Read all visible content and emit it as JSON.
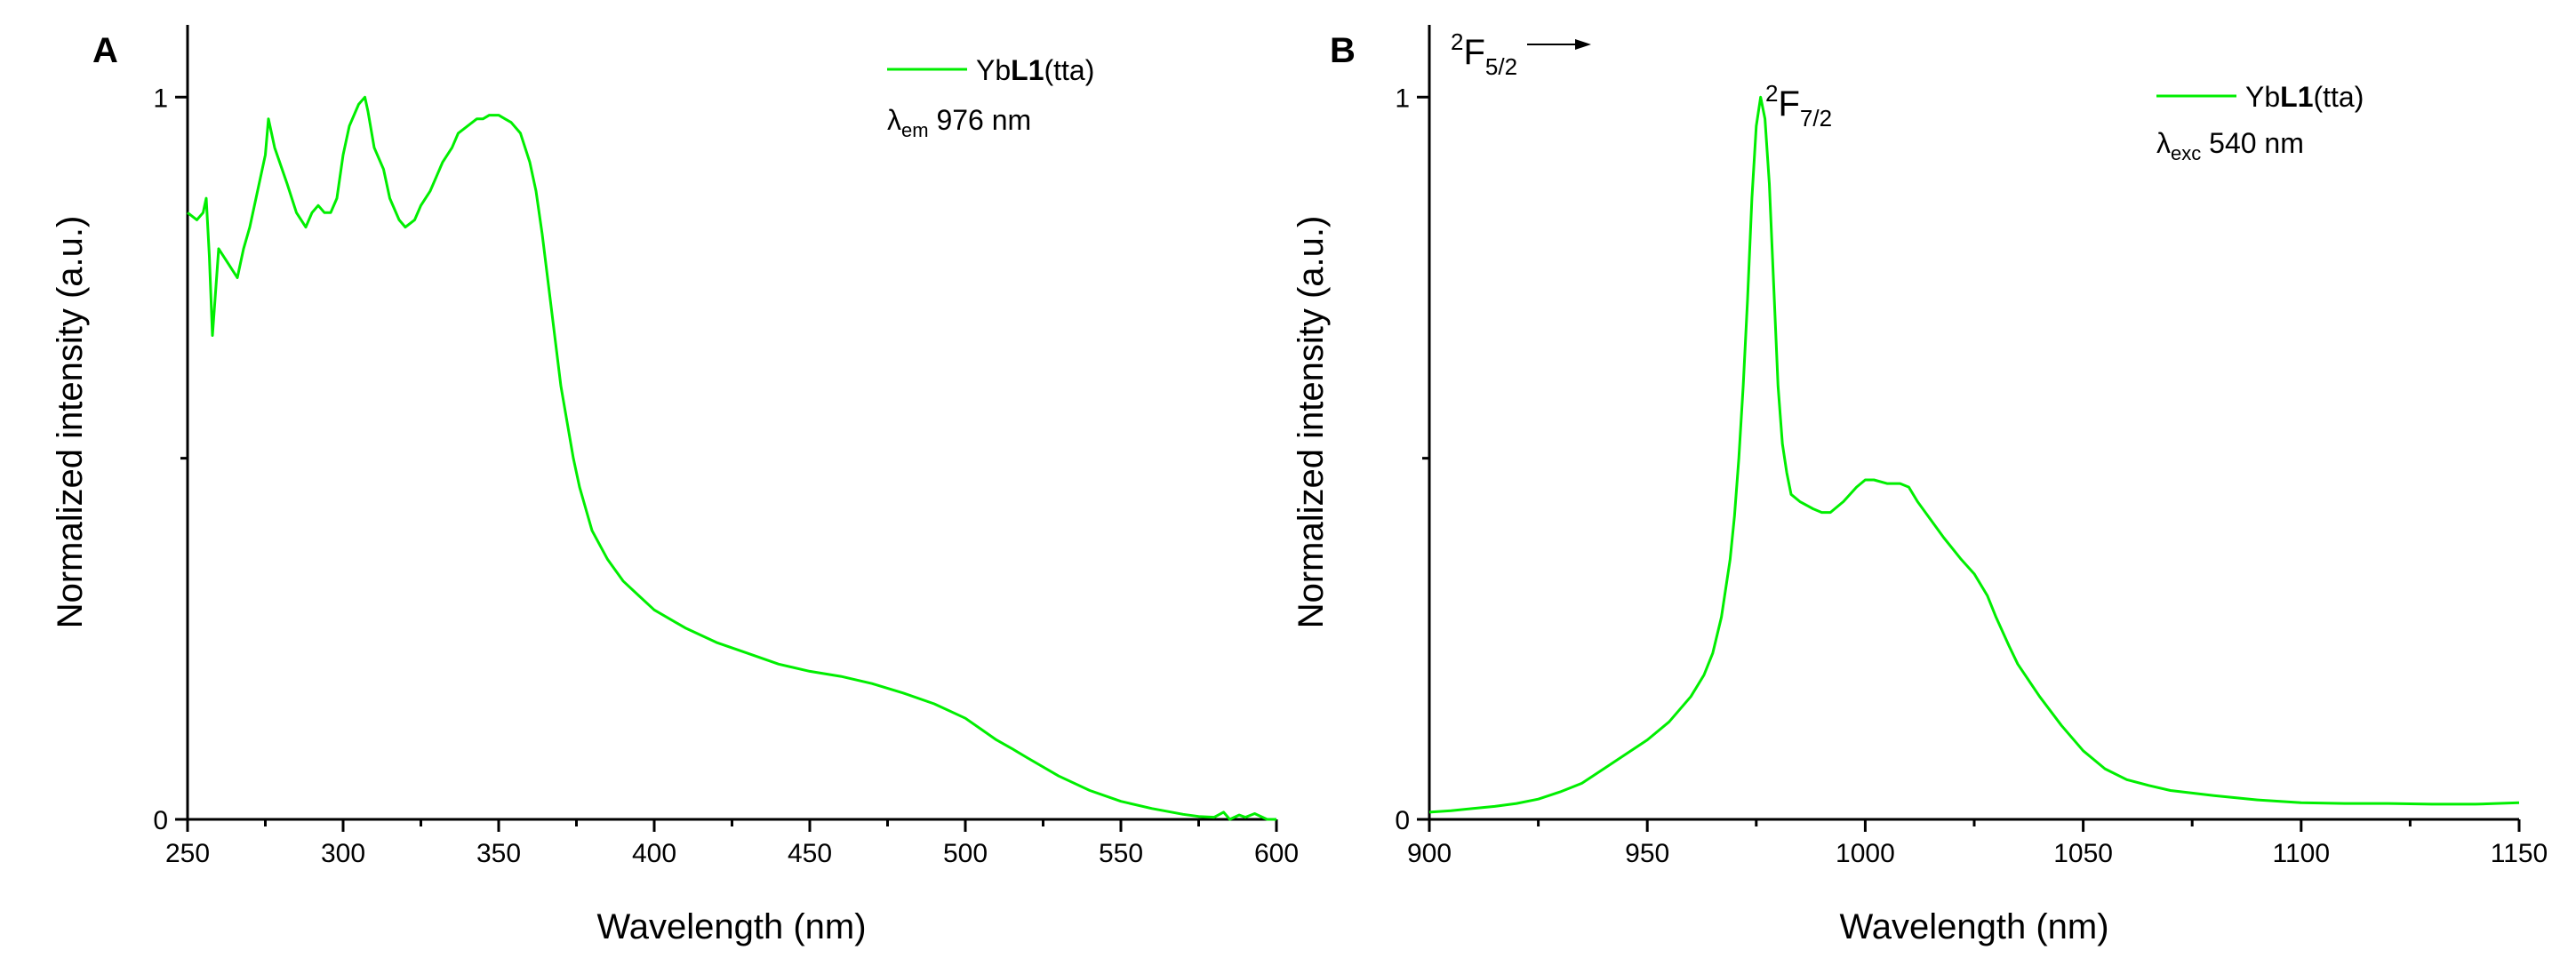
{
  "colors": {
    "series": "#00ee00",
    "axis": "#000000"
  },
  "chart_data": [
    {
      "type": "line",
      "panel_label": "A",
      "xlabel": "Wavelength (nm)",
      "ylabel": "Normalized intensity (a.u.)",
      "xlim": [
        250,
        600
      ],
      "ylim": [
        0,
        1.1
      ],
      "x_major_ticks": [
        250,
        300,
        350,
        400,
        450,
        500,
        550,
        600
      ],
      "x_tick_labels": [
        "250",
        "300",
        "350",
        "400",
        "450",
        "500",
        "550",
        "600"
      ],
      "y_major_ticks": [
        0,
        1
      ],
      "y_tick_labels": [
        "0",
        "1"
      ],
      "y_minor_ticks": [
        0.5
      ],
      "legend": {
        "placement": "top-right",
        "series_prefix": "Yb",
        "series_bold": "L1",
        "series_suffix": "(tta)"
      },
      "annotation": {
        "symbol": "λ",
        "subscript": "em",
        "text": " 976 nm"
      },
      "series": [
        {
          "name": "YbL1(tta)",
          "x": [
            250,
            253,
            255,
            256,
            257,
            258,
            260,
            263,
            266,
            268,
            270,
            273,
            275,
            276,
            278,
            282,
            285,
            288,
            290,
            292,
            294,
            296,
            298,
            300,
            302,
            305,
            307,
            308,
            310,
            313,
            315,
            318,
            320,
            323,
            325,
            328,
            330,
            332,
            335,
            337,
            340,
            343,
            345,
            347,
            350,
            352,
            354,
            357,
            360,
            362,
            364,
            366,
            368,
            370,
            372,
            374,
            376,
            378,
            380,
            385,
            390,
            395,
            400,
            410,
            420,
            430,
            440,
            450,
            460,
            470,
            480,
            490,
            500,
            505,
            510,
            515,
            520,
            530,
            540,
            550,
            560,
            570,
            575,
            580,
            583,
            585,
            588,
            590,
            593,
            595,
            597,
            600
          ],
          "y": [
            0.84,
            0.83,
            0.84,
            0.86,
            0.78,
            0.67,
            0.79,
            0.77,
            0.75,
            0.79,
            0.82,
            0.88,
            0.92,
            0.97,
            0.93,
            0.88,
            0.84,
            0.82,
            0.84,
            0.85,
            0.84,
            0.84,
            0.86,
            0.92,
            0.96,
            0.99,
            1.0,
            0.98,
            0.93,
            0.9,
            0.86,
            0.83,
            0.82,
            0.83,
            0.85,
            0.87,
            0.89,
            0.91,
            0.93,
            0.95,
            0.96,
            0.97,
            0.97,
            0.975,
            0.975,
            0.97,
            0.965,
            0.95,
            0.91,
            0.87,
            0.81,
            0.74,
            0.67,
            0.6,
            0.55,
            0.5,
            0.46,
            0.43,
            0.4,
            0.36,
            0.33,
            0.31,
            0.29,
            0.265,
            0.245,
            0.23,
            0.215,
            0.205,
            0.198,
            0.188,
            0.175,
            0.16,
            0.14,
            0.125,
            0.11,
            0.098,
            0.085,
            0.06,
            0.04,
            0.025,
            0.015,
            0.007,
            0.004,
            0.003,
            0.01,
            0.0,
            0.006,
            0.003,
            0.008,
            0.004,
            0.0,
            0.0
          ]
        }
      ]
    },
    {
      "type": "line",
      "panel_label": "B",
      "xlabel": "Wavelength (nm)",
      "ylabel": "Normalized intensity (a.u.)",
      "xlim": [
        900,
        1150
      ],
      "ylim": [
        0,
        1.1
      ],
      "x_major_ticks": [
        900,
        950,
        1000,
        1050,
        1100,
        1150
      ],
      "x_tick_labels": [
        "900",
        "950",
        "1000",
        "1050",
        "1100",
        "1150"
      ],
      "y_major_ticks": [
        0,
        1
      ],
      "y_tick_labels": [
        "0",
        "1"
      ],
      "y_minor_ticks": [
        0.5
      ],
      "legend": {
        "placement": "top-right",
        "series_prefix": "Yb",
        "series_bold": "L1",
        "series_suffix": "(tta)"
      },
      "annotation": {
        "symbol": "λ",
        "subscript": "exc",
        "text": " 540 nm"
      },
      "transition": {
        "from_sup": "2",
        "from_base": "F",
        "from_sub": "5/2",
        "to_sup": "2",
        "to_base": "F",
        "to_sub": "7/2"
      },
      "series": [
        {
          "name": "YbL1(tta)",
          "x": [
            900,
            905,
            910,
            915,
            920,
            925,
            930,
            935,
            940,
            945,
            950,
            955,
            960,
            963,
            965,
            967,
            969,
            970,
            971,
            972,
            973,
            974,
            975,
            976,
            977,
            978,
            979,
            980,
            981,
            982,
            983,
            985,
            988,
            990,
            992,
            995,
            998,
            1000,
            1002,
            1005,
            1008,
            1010,
            1012,
            1015,
            1018,
            1020,
            1022,
            1025,
            1028,
            1030,
            1033,
            1035,
            1040,
            1045,
            1050,
            1055,
            1060,
            1065,
            1070,
            1080,
            1090,
            1100,
            1110,
            1120,
            1130,
            1140,
            1150
          ],
          "y": [
            0.01,
            0.012,
            0.015,
            0.018,
            0.022,
            0.028,
            0.038,
            0.05,
            0.07,
            0.09,
            0.11,
            0.135,
            0.17,
            0.2,
            0.23,
            0.28,
            0.36,
            0.42,
            0.5,
            0.6,
            0.72,
            0.86,
            0.96,
            1.0,
            0.97,
            0.88,
            0.74,
            0.6,
            0.52,
            0.48,
            0.45,
            0.44,
            0.43,
            0.425,
            0.425,
            0.44,
            0.46,
            0.47,
            0.47,
            0.465,
            0.465,
            0.46,
            0.44,
            0.415,
            0.39,
            0.375,
            0.36,
            0.34,
            0.31,
            0.28,
            0.24,
            0.215,
            0.17,
            0.13,
            0.095,
            0.07,
            0.055,
            0.047,
            0.04,
            0.033,
            0.027,
            0.023,
            0.022,
            0.022,
            0.021,
            0.021,
            0.023
          ]
        }
      ]
    }
  ]
}
